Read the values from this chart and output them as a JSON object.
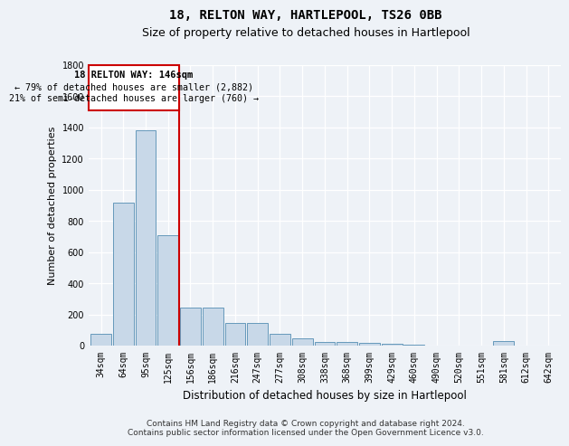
{
  "title": "18, RELTON WAY, HARTLEPOOL, TS26 0BB",
  "subtitle": "Size of property relative to detached houses in Hartlepool",
  "xlabel": "Distribution of detached houses by size in Hartlepool",
  "ylabel": "Number of detached properties",
  "categories": [
    "34sqm",
    "64sqm",
    "95sqm",
    "125sqm",
    "156sqm",
    "186sqm",
    "216sqm",
    "247sqm",
    "277sqm",
    "308sqm",
    "338sqm",
    "368sqm",
    "399sqm",
    "429sqm",
    "460sqm",
    "490sqm",
    "520sqm",
    "551sqm",
    "581sqm",
    "612sqm",
    "642sqm"
  ],
  "values": [
    75,
    920,
    1380,
    710,
    245,
    245,
    145,
    145,
    75,
    45,
    25,
    25,
    20,
    10,
    5,
    0,
    0,
    0,
    30,
    0,
    0
  ],
  "bar_color": "#c8d8e8",
  "bar_edge_color": "#6699bb",
  "vline_idx": 4,
  "vline_color": "#cc0000",
  "annotation_title": "18 RELTON WAY: 146sqm",
  "annotation_line1": "← 79% of detached houses are smaller (2,882)",
  "annotation_line2": "21% of semi-detached houses are larger (760) →",
  "annotation_box_edgecolor": "#cc0000",
  "annotation_box_facecolor": "white",
  "footer_line1": "Contains HM Land Registry data © Crown copyright and database right 2024.",
  "footer_line2": "Contains public sector information licensed under the Open Government Licence v3.0.",
  "ylim": [
    0,
    1800
  ],
  "yticks": [
    0,
    200,
    400,
    600,
    800,
    1000,
    1200,
    1400,
    1600,
    1800
  ],
  "background_color": "#eef2f7",
  "grid_color": "white",
  "title_fontsize": 10,
  "subtitle_fontsize": 9,
  "ylabel_fontsize": 8,
  "xlabel_fontsize": 8.5,
  "tick_fontsize": 7,
  "footer_fontsize": 6.5,
  "annotation_fontsize": 7.5
}
